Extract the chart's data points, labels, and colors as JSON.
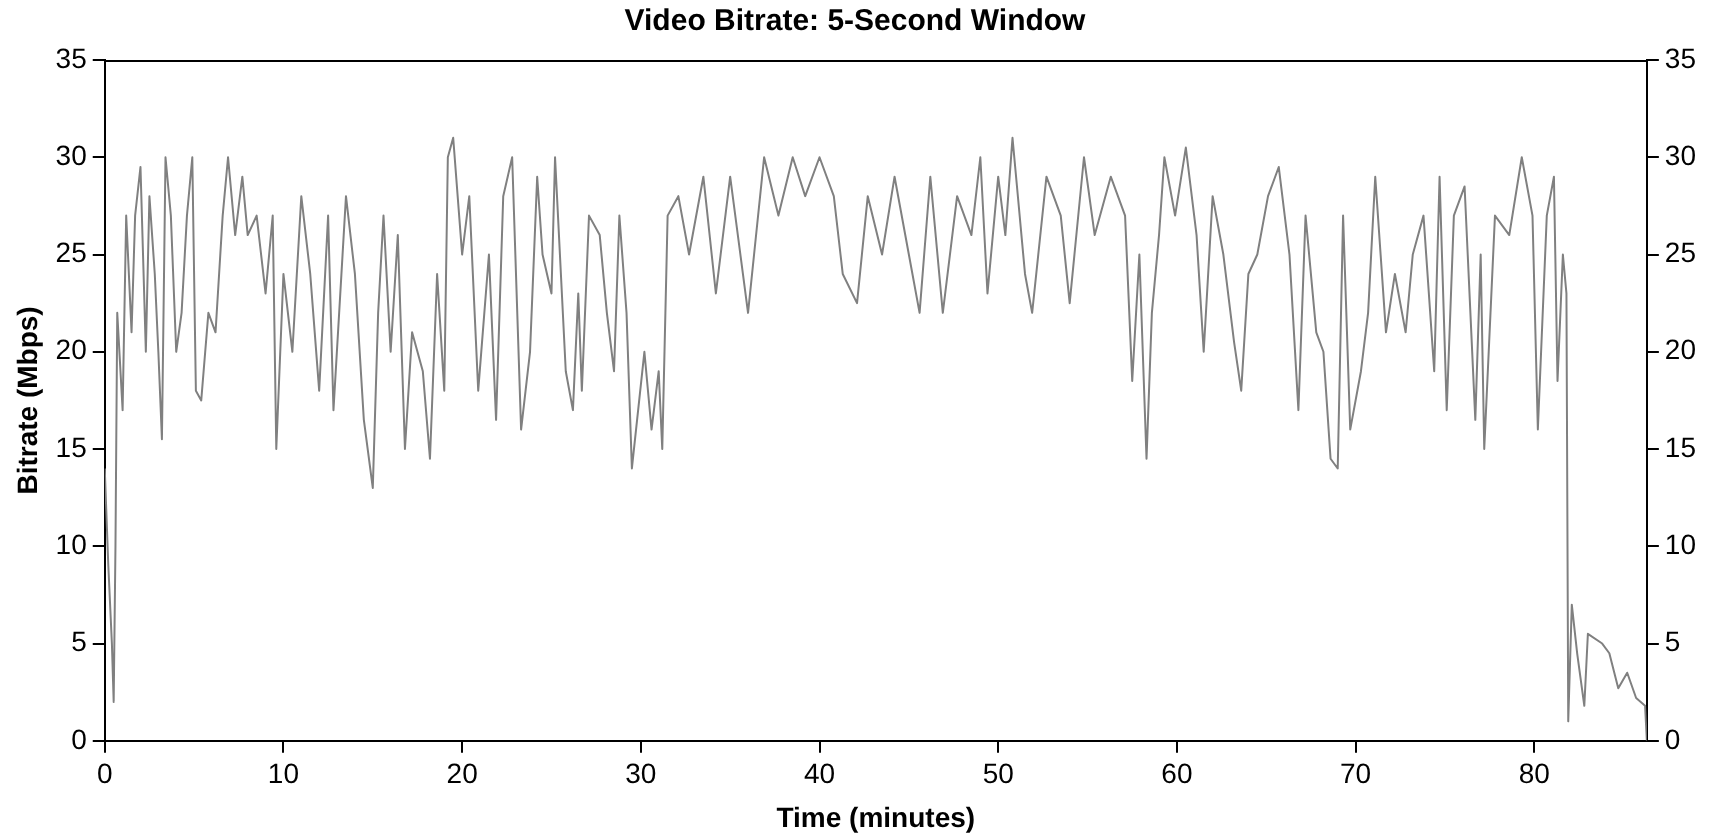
{
  "chart_data": {
    "type": "line",
    "title": "Video Bitrate: 5-Second Window",
    "xlabel": "Time (minutes)",
    "ylabel": "Bitrate (Mbps)",
    "xlim": [
      0,
      86.3
    ],
    "xticks": [
      0,
      10,
      20,
      30,
      40,
      50,
      60,
      70,
      80
    ],
    "ylim": [
      0,
      35
    ],
    "yticks": [
      0,
      5,
      10,
      15,
      20,
      25,
      30,
      35
    ],
    "y2lim": [
      0,
      35
    ],
    "y2ticks": [
      0,
      5,
      10,
      15,
      20,
      25,
      30,
      35
    ],
    "grid": false,
    "legend": false,
    "marker": "none",
    "line_style": "solid",
    "series": [
      {
        "color": "#808080",
        "x": [
          0,
          0.2,
          0.4,
          0.5,
          0.6,
          0.7,
          1.0,
          1.2,
          1.5,
          1.7,
          2,
          2.3,
          2.5,
          2.8,
          3.0,
          3.2,
          3.4,
          3.7,
          4,
          4.3,
          4.6,
          4.9,
          5.1,
          5.4,
          5.8,
          6.2,
          6.6,
          6.9,
          7.3,
          7.7,
          8.0,
          8.5,
          9.0,
          9.4,
          9.6,
          10,
          10.5,
          11,
          11.5,
          12,
          12.5,
          12.8,
          13.5,
          14,
          14.5,
          15,
          15.3,
          15.6,
          16,
          16.4,
          16.8,
          17.2,
          17.8,
          18.2,
          18.6,
          19,
          19.2,
          19.5,
          20,
          20.4,
          20.9,
          21.5,
          21.9,
          22.3,
          22.8,
          23.3,
          23.8,
          24.2,
          24.5,
          25,
          25.2,
          25.8,
          26.2,
          26.5,
          26.7,
          27.1,
          27.7,
          28.1,
          28.5,
          28.8,
          29.2,
          29.5,
          30.2,
          30.6,
          31,
          31.2,
          31.5,
          32.1,
          32.7,
          33.5,
          34.2,
          35,
          36,
          36.9,
          37.7,
          38.5,
          39.2,
          40,
          40.8,
          41.3,
          42.1,
          42.7,
          43.5,
          44.2,
          45,
          45.6,
          46.2,
          46.9,
          47.7,
          48.5,
          49,
          49.4,
          50,
          50.4,
          50.8,
          51.5,
          51.9,
          52.7,
          53.5,
          54,
          54.8,
          55.4,
          56.3,
          57.1,
          57.5,
          57.9,
          58.3,
          58.6,
          59,
          59.3,
          59.9,
          60.5,
          61.1,
          61.5,
          62,
          62.6,
          63.2,
          63.6,
          64,
          64.5,
          65.1,
          65.7,
          66.3,
          66.8,
          67.2,
          67.8,
          68.2,
          68.6,
          69,
          69.3,
          69.7,
          70.3,
          70.7,
          71.1,
          71.7,
          72.2,
          72.8,
          73.2,
          73.8,
          74.4,
          74.7,
          75.1,
          75.5,
          76.1,
          76.7,
          77,
          77.2,
          77.8,
          78.6,
          79.3,
          79.9,
          80.2,
          80.7,
          81.1,
          81.3,
          81.6,
          81.8,
          81.9,
          82.1,
          82.4,
          82.8,
          83,
          83.8,
          84.2,
          84.7,
          85.2,
          85.7,
          86.2,
          86.3
        ],
        "values": [
          14,
          9,
          5,
          2,
          10,
          22,
          17,
          27,
          21,
          27,
          29.5,
          20,
          28,
          24,
          20,
          15.5,
          30,
          27,
          20,
          22,
          27,
          30,
          18,
          17.5,
          22,
          21,
          27,
          30,
          26,
          29,
          26,
          27,
          23,
          27,
          15,
          24,
          20,
          28,
          24,
          18,
          27,
          17,
          28,
          24,
          16.5,
          13,
          22,
          27,
          20,
          26,
          15,
          21,
          19,
          14.5,
          24,
          18,
          30,
          31,
          25,
          28,
          18,
          25,
          16.5,
          28,
          30,
          16,
          20,
          29,
          25,
          23,
          30,
          19,
          17,
          23,
          18,
          27,
          26,
          22,
          19,
          27,
          22,
          14,
          20,
          16,
          19,
          15,
          27,
          28,
          25,
          29,
          23,
          29,
          22,
          30,
          27,
          30,
          28,
          30,
          28,
          24,
          22.5,
          28,
          25,
          29,
          25,
          22,
          29,
          22,
          28,
          26,
          30,
          23,
          29,
          26,
          31,
          24,
          22,
          29,
          27,
          22.5,
          30,
          26,
          29,
          27,
          18.5,
          25,
          14.5,
          22,
          26,
          30,
          27,
          30.5,
          26,
          20,
          28,
          25,
          20.5,
          18,
          24,
          25,
          28,
          29.5,
          25,
          17,
          27,
          21,
          20,
          14.5,
          14,
          27,
          16,
          19,
          22,
          29,
          21,
          24,
          21,
          25,
          27,
          19,
          29,
          17,
          27,
          28.5,
          16.5,
          25,
          15,
          27,
          26,
          30,
          27,
          16,
          27,
          29,
          18.5,
          25,
          23,
          1,
          7,
          4.5,
          1.8,
          5.5,
          5,
          4.5,
          2.7,
          3.5,
          2.2,
          1.8,
          0
        ]
      }
    ]
  }
}
